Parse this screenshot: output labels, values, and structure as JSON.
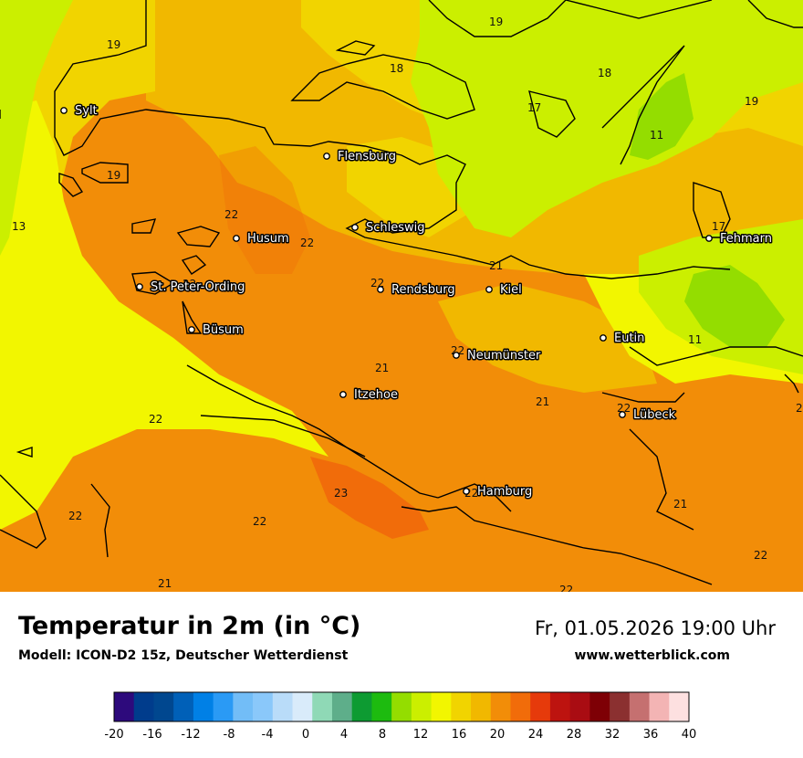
{
  "header": {
    "title": "Temperatur in 2m (in °C)",
    "subtitle": "Modell: ICON-D2 15z, Deutscher Wetterdienst",
    "datetime": "Fr, 01.05.2026 19:00 Uhr",
    "website": "www.wetterblick.com"
  },
  "cities": [
    {
      "name": "Sylt"
    },
    {
      "name": "Flensburg"
    },
    {
      "name": "Schleswig"
    },
    {
      "name": "Husum"
    },
    {
      "name": "St. Peter-Ording"
    },
    {
      "name": "Büsum"
    },
    {
      "name": "Rendsburg"
    },
    {
      "name": "Kiel"
    },
    {
      "name": "Neumünster"
    },
    {
      "name": "Itzehoe"
    },
    {
      "name": "Eutin"
    },
    {
      "name": "Lübeck"
    },
    {
      "name": "Fehmarn"
    },
    {
      "name": "Hamburg"
    }
  ],
  "map_values": [
    "19",
    "19",
    "18",
    "18",
    "17",
    "19",
    "11",
    "19",
    "13",
    "22",
    "22",
    "17",
    "22",
    "22",
    "21",
    "11",
    "22",
    "21",
    "21",
    "22",
    "2",
    "22",
    "23",
    "22",
    "22",
    "21",
    "22",
    "21",
    "22"
  ],
  "legend": {
    "tick_labels": [
      "-20",
      "-16",
      "-12",
      "-8",
      "-4",
      "0",
      "4",
      "8",
      "12",
      "16",
      "20",
      "24",
      "28",
      "32",
      "36",
      "40"
    ],
    "colors": [
      "#2d0a7c",
      "#003c8c",
      "#00478f",
      "#0060b8",
      "#0080e6",
      "#2a9af5",
      "#72bdf7",
      "#8ac8fa",
      "#b9dcf9",
      "#d9ebfa",
      "#8fd9b6",
      "#5eae8a",
      "#0d9b32",
      "#1dbb0f",
      "#94dd00",
      "#cbef00",
      "#f2f600",
      "#f1d400",
      "#f1b800",
      "#f28d08",
      "#f16c0a",
      "#e63a0b",
      "#bd130f",
      "#a90c12",
      "#7e0005",
      "#8b3030",
      "#c57070",
      "#f3b4b4",
      "#fde0e0"
    ]
  }
}
